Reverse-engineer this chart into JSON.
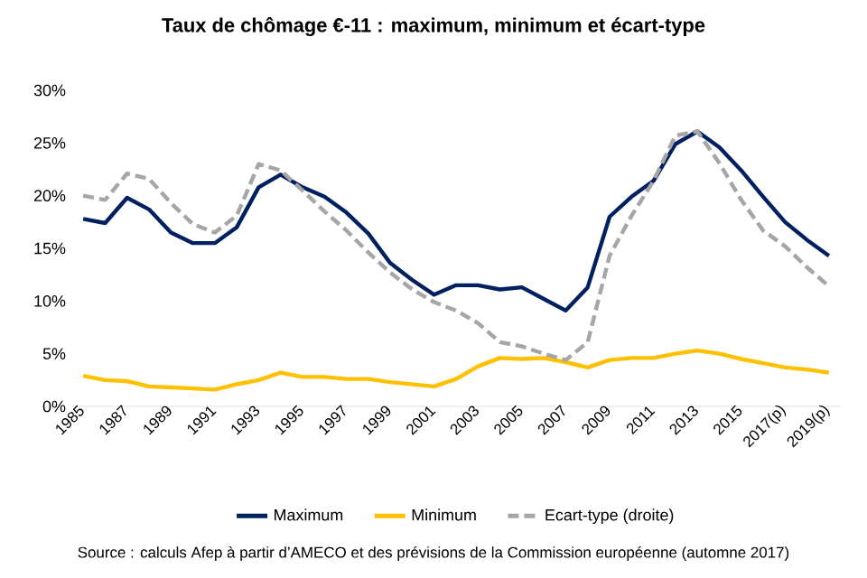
{
  "chart_data": {
    "type": "line",
    "title": "Taux de chômage €-11 : maximum, minimum et écart-type",
    "categories": [
      "1985",
      null,
      "1987",
      null,
      "1989",
      null,
      "1991",
      null,
      "1993",
      null,
      "1995",
      null,
      "1997",
      null,
      "1999",
      null,
      "2001",
      null,
      "2003",
      null,
      "2005",
      null,
      "2007",
      null,
      "2009",
      null,
      "2011",
      null,
      "2013",
      null,
      "2015",
      null,
      "2017(p)",
      null,
      "2019(p)"
    ],
    "series": [
      {
        "name": "Maximum",
        "color": "#002060",
        "line_style": "solid",
        "values": [
          17.8,
          17.4,
          19.8,
          18.7,
          16.5,
          15.5,
          15.5,
          17.0,
          20.8,
          22.0,
          20.8,
          19.9,
          18.4,
          16.4,
          13.6,
          12.0,
          10.6,
          11.5,
          11.5,
          11.1,
          11.3,
          10.2,
          9.1,
          11.3,
          18.0,
          19.9,
          21.4,
          24.9,
          26.1,
          24.6,
          22.4,
          19.9,
          17.5,
          15.8,
          14.3
        ]
      },
      {
        "name": "Minimum",
        "color": "#ffc000",
        "line_style": "solid",
        "values": [
          2.9,
          2.5,
          2.4,
          1.9,
          1.8,
          1.7,
          1.6,
          2.1,
          2.5,
          3.2,
          2.8,
          2.8,
          2.6,
          2.6,
          2.3,
          2.1,
          1.9,
          2.6,
          3.8,
          4.6,
          4.5,
          4.6,
          4.2,
          3.7,
          4.4,
          4.6,
          4.6,
          5.0,
          5.3,
          5.0,
          4.5,
          4.1,
          3.7,
          3.5,
          3.2
        ]
      },
      {
        "name": "Ecart-type (droite)",
        "color": "#a6a6a6",
        "line_style": "dashed",
        "values": [
          20.0,
          19.6,
          22.1,
          21.6,
          19.3,
          17.3,
          16.5,
          18.1,
          23.0,
          22.4,
          20.5,
          18.5,
          16.7,
          14.6,
          12.7,
          11.1,
          9.9,
          9.1,
          7.9,
          6.1,
          5.7,
          5.0,
          4.4,
          6.1,
          14.3,
          18.1,
          21.4,
          25.7,
          26.1,
          23.1,
          19.6,
          16.7,
          15.2,
          13.2,
          11.4
        ]
      }
    ],
    "ylim": [
      0,
      30
    ],
    "yticks": [
      {
        "value": 0,
        "label": "0%"
      },
      {
        "value": 5,
        "label": "5%"
      },
      {
        "value": 10,
        "label": "10%"
      },
      {
        "value": 15,
        "label": "15%"
      },
      {
        "value": 20,
        "label": "20%"
      },
      {
        "value": 25,
        "label": "25%"
      },
      {
        "value": 30,
        "label": "30%"
      }
    ],
    "grid": false,
    "legend": "bottom",
    "marker": "none",
    "annotations": [
      "Source : calculs Afep à partir d’AMECO et des prévisions de la Commission européenne (automne 2017)"
    ]
  }
}
